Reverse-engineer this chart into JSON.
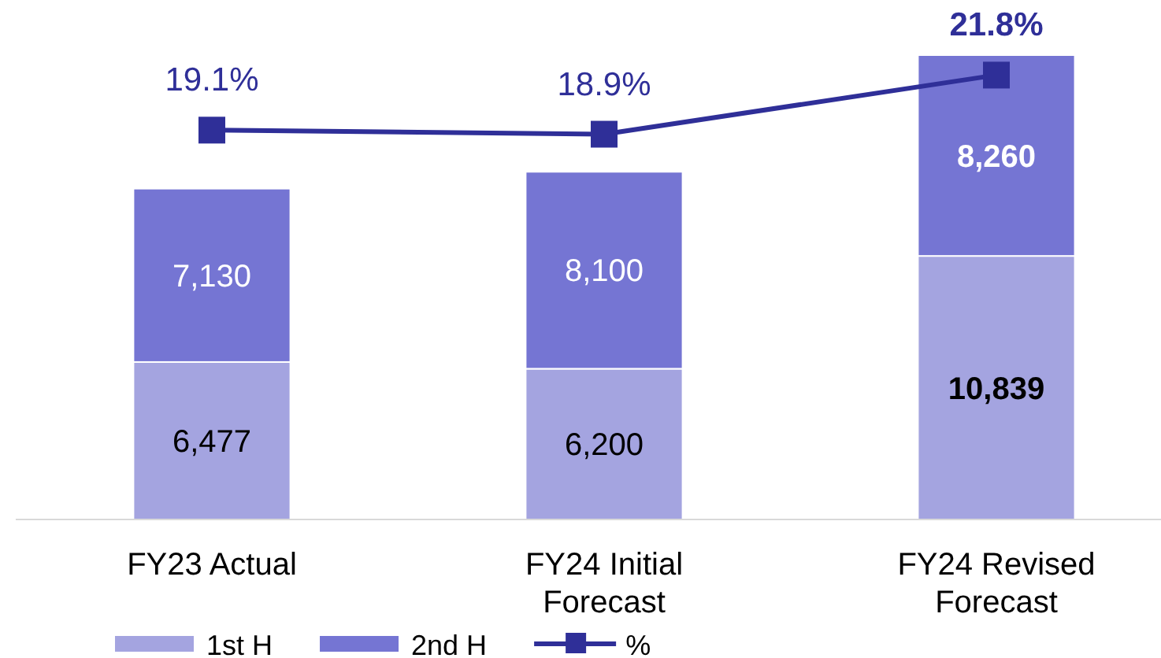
{
  "chart_data": {
    "type": "bar",
    "stacked": true,
    "legend": "bottom",
    "categories": [
      "FY23 Actual",
      "FY24 Initial Forecast",
      "FY24 Revised Forecast"
    ],
    "series": [
      {
        "name": "1st H",
        "color": "#a4a4e0",
        "values": [
          6477,
          6200,
          10839
        ],
        "value_labels": [
          "6,477",
          "6,200",
          "10,839"
        ]
      },
      {
        "name": "2nd H",
        "color": "#7575d3",
        "values": [
          7130,
          8100,
          8260
        ],
        "value_labels": [
          "7,130",
          "8,100",
          "8,260"
        ]
      },
      {
        "name": "%",
        "type": "line",
        "axis": "y2",
        "color": "#2f2f98",
        "marker": "square",
        "values": [
          19.1,
          18.9,
          21.8
        ],
        "value_labels": [
          "19.1%",
          "18.9%",
          "21.8%"
        ]
      }
    ]
  }
}
